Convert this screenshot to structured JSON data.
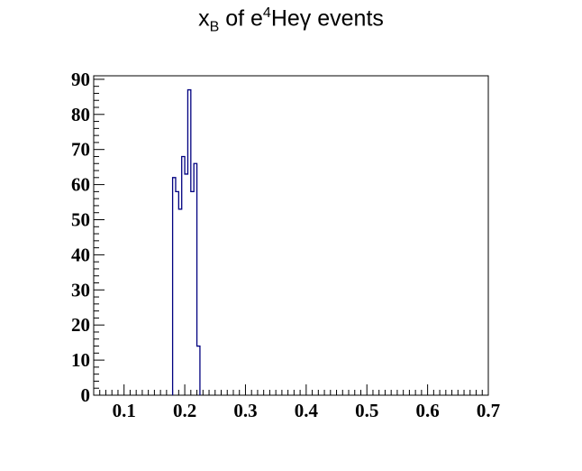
{
  "chart_data": {
    "type": "histogram",
    "title": {
      "base": "x",
      "sub": "B",
      "mid": " of e",
      "sup": "4",
      "tail": "Heγ events"
    },
    "xlabel": "",
    "ylabel": "",
    "xlim": [
      0.05,
      0.7
    ],
    "ylim": [
      0,
      91
    ],
    "x_ticks": [
      "0.1",
      "0.2",
      "0.3",
      "0.4",
      "0.5",
      "0.6",
      "0.7"
    ],
    "y_ticks": [
      "0",
      "10",
      "20",
      "30",
      "40",
      "50",
      "60",
      "70",
      "80",
      "90"
    ],
    "bin_width": 0.005,
    "bins": [
      {
        "x": 0.18,
        "y": 62
      },
      {
        "x": 0.185,
        "y": 58
      },
      {
        "x": 0.19,
        "y": 53
      },
      {
        "x": 0.195,
        "y": 68
      },
      {
        "x": 0.2,
        "y": 63
      },
      {
        "x": 0.205,
        "y": 87
      },
      {
        "x": 0.21,
        "y": 58
      },
      {
        "x": 0.215,
        "y": 66
      },
      {
        "x": 0.22,
        "y": 14
      }
    ],
    "colors": {
      "line": "#000080",
      "frame": "#000000"
    }
  }
}
